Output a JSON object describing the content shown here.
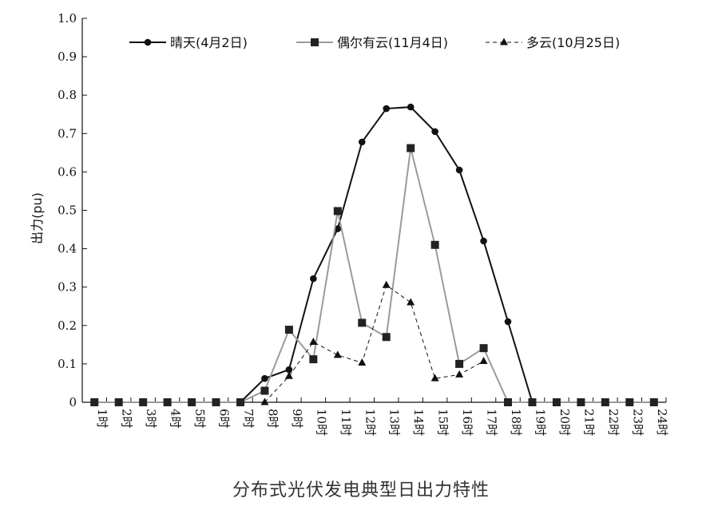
{
  "caption": "分布式光伏发电典型日出力特性",
  "chart_data": {
    "type": "line",
    "title": "",
    "xlabel": "",
    "ylabel": "出力(pu)",
    "ylim": [
      0,
      1.0
    ],
    "yticks": [
      "0",
      "0.1",
      "0.2",
      "0.3",
      "0.4",
      "0.5",
      "0.6",
      "0.7",
      "0.8",
      "0.9",
      "1.0"
    ],
    "categories": [
      "1时",
      "2时",
      "3时",
      "4时",
      "5时",
      "6时",
      "7时",
      "8时",
      "9时",
      "10时",
      "11时",
      "12时",
      "13时",
      "14时",
      "15时",
      "16时",
      "17时",
      "18时",
      "19时",
      "20时",
      "21时",
      "22时",
      "23时",
      "24时"
    ],
    "legend_position": "top",
    "grid": false,
    "series": [
      {
        "name": "晴天(4月2日)",
        "marker": "circle",
        "color": "#111111",
        "dash": "solid",
        "values": [
          0,
          0,
          0,
          0,
          0,
          0,
          0,
          0.062,
          0.085,
          0.322,
          0.452,
          0.678,
          0.765,
          0.769,
          0.705,
          0.605,
          0.42,
          0.21,
          0,
          0,
          0,
          0,
          0,
          0
        ]
      },
      {
        "name": "偶尔有云(11月4日)",
        "marker": "square",
        "color": "#9a9a9a",
        "dash": "solid",
        "values": [
          0,
          0,
          0,
          0,
          0,
          0,
          0,
          0.03,
          0.189,
          0.112,
          0.498,
          0.207,
          0.17,
          0.662,
          0.41,
          0.1,
          0.141,
          0,
          0,
          0,
          0,
          0,
          0,
          0
        ]
      },
      {
        "name": "多云(10月25日)",
        "marker": "triangle",
        "color": "#111111",
        "dash": "dashed",
        "values": [
          null,
          null,
          null,
          null,
          null,
          null,
          null,
          0,
          0.068,
          0.157,
          0.123,
          0.103,
          0.305,
          0.26,
          0.062,
          0.072,
          0.107,
          null,
          null,
          null,
          null,
          null,
          null,
          null
        ]
      }
    ]
  }
}
